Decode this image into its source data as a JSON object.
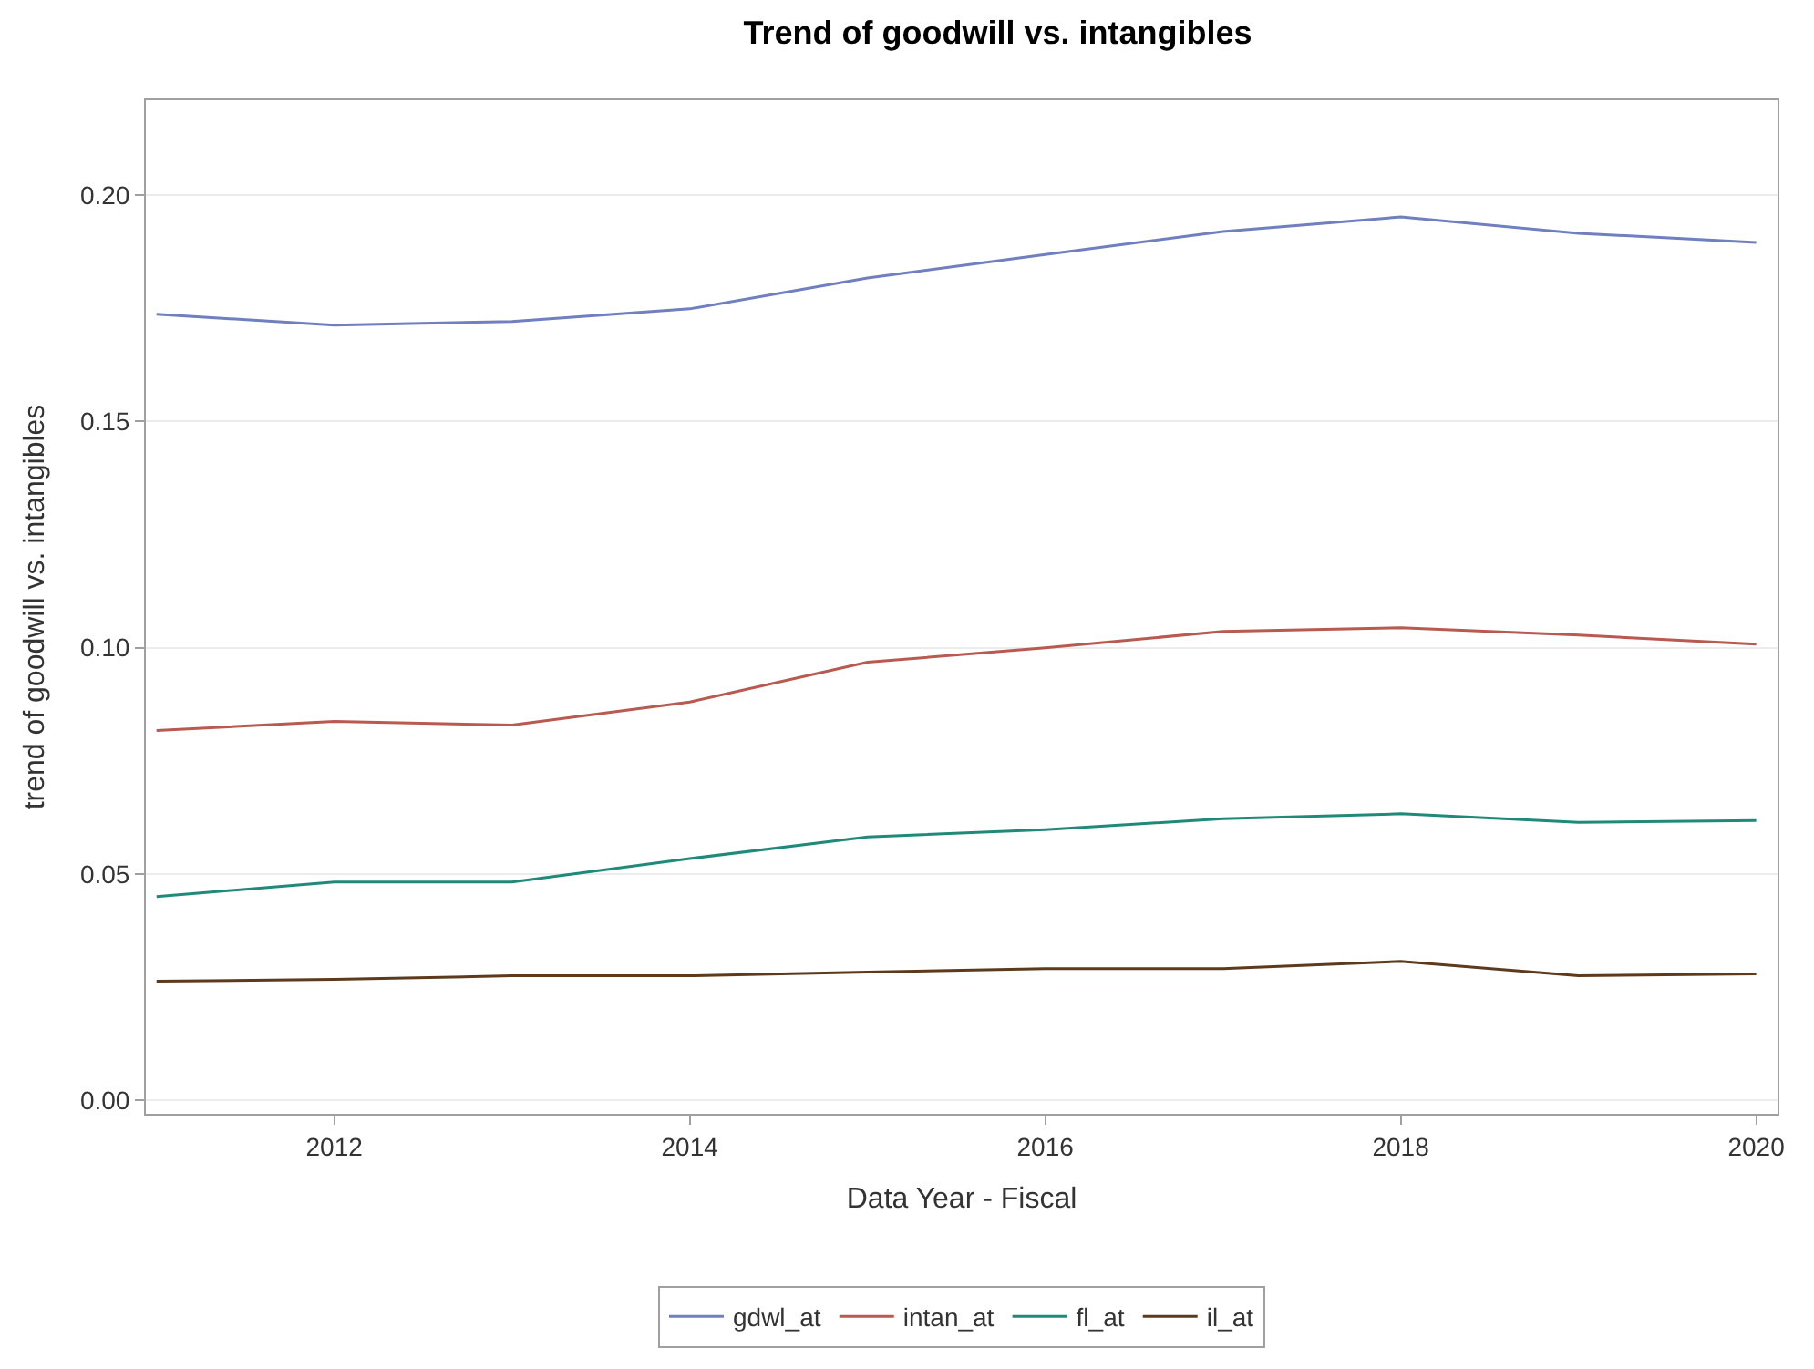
{
  "chart_data": {
    "type": "line",
    "title": "Trend of goodwill vs. intangibles",
    "xlabel": "Data Year - Fiscal",
    "ylabel": "trend of goodwill vs. intangibles",
    "x": [
      2011,
      2012,
      2013,
      2014,
      2015,
      2016,
      2017,
      2018,
      2019,
      2020
    ],
    "series": [
      {
        "name": "gdwl_at",
        "color": "#6f7fbf",
        "values": [
          0.1737,
          0.1713,
          0.1721,
          0.1749,
          0.1817,
          0.1869,
          0.192,
          0.1952,
          0.1916,
          0.1896
        ]
      },
      {
        "name": "intan_at",
        "color": "#b85a50",
        "values": [
          0.0817,
          0.0837,
          0.0829,
          0.088,
          0.0968,
          0.1,
          0.1036,
          0.1044,
          0.1028,
          0.1008
        ]
      },
      {
        "name": "fl_at",
        "color": "#1f8a7a",
        "values": [
          0.045,
          0.0482,
          0.0482,
          0.0534,
          0.0582,
          0.0598,
          0.0622,
          0.0633,
          0.0614,
          0.0618
        ]
      },
      {
        "name": "il_at",
        "color": "#5e3a1c",
        "values": [
          0.0263,
          0.0267,
          0.0275,
          0.0275,
          0.0283,
          0.0291,
          0.0291,
          0.0307,
          0.0275,
          0.0279
        ]
      }
    ],
    "xlim": [
      2010.94,
      2020.12
    ],
    "xticks": [
      2012,
      2014,
      2016,
      2018,
      2020
    ],
    "ylim": [
      -0.003,
      0.221
    ],
    "yticks": [
      {
        "value": 0,
        "label": "0.00"
      },
      {
        "value": 0.05,
        "label": "0.05"
      },
      {
        "value": 0.1,
        "label": "0.10"
      },
      {
        "value": 0.15,
        "label": "0.15"
      },
      {
        "value": 0.2,
        "label": "0.20"
      }
    ],
    "grid": "y",
    "legend": "bottom",
    "marker": "none",
    "line_style": "solid"
  }
}
